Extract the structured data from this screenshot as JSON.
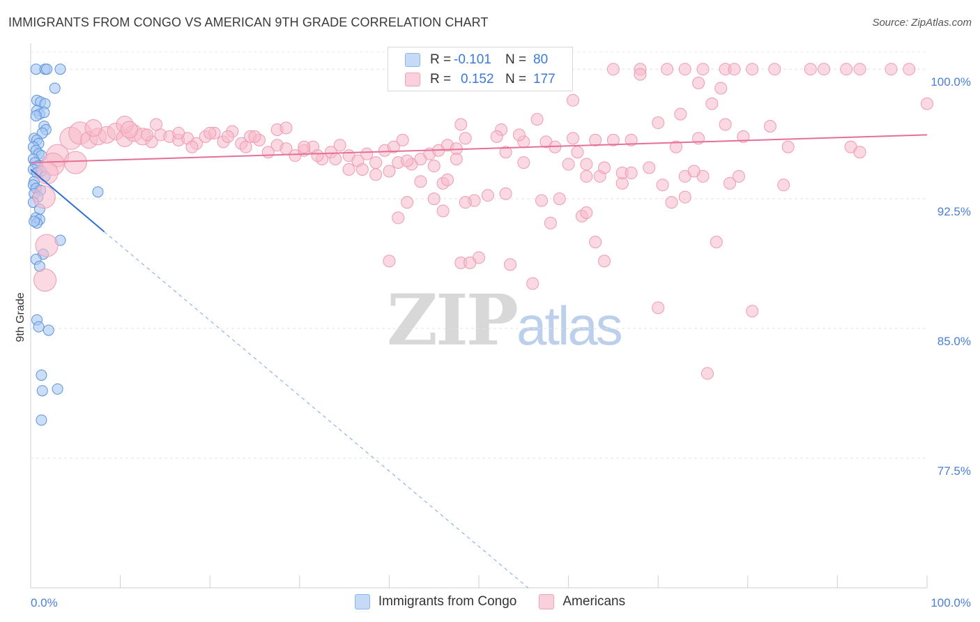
{
  "title": "IMMIGRANTS FROM CONGO VS AMERICAN 9TH GRADE CORRELATION CHART",
  "source": "Source: ZipAtlas.com",
  "watermark": {
    "zip": "ZIP",
    "atlas": "atlas"
  },
  "legend_box": {
    "rows": [
      {
        "r_label": "R =",
        "r_value": "-0.101",
        "n_label": "N =",
        "n_value": "80",
        "color": "#a9c8f3"
      },
      {
        "r_label": "R =",
        "r_value": "0.152",
        "n_label": "N =",
        "n_value": "177",
        "color": "#f7b9cb"
      }
    ]
  },
  "bottom_legend": [
    {
      "label": "Immigrants from Congo",
      "color": "#a9c8f3"
    },
    {
      "label": "Americans",
      "color": "#f7b9cb"
    }
  ],
  "chart_data": {
    "type": "scatter",
    "title": "IMMIGRANTS FROM CONGO VS AMERICAN 9TH GRADE CORRELATION CHART",
    "xlabel": "",
    "ylabel": "9th Grade",
    "xlim": [
      0,
      100
    ],
    "ylim": [
      70,
      101.5
    ],
    "x_tick_labels": [
      "0.0%",
      "100.0%"
    ],
    "y_ticks": [
      77.5,
      85.0,
      92.5,
      100.0
    ],
    "y_tick_labels": [
      "77.5%",
      "85.0%",
      "92.5%",
      "100.0%"
    ],
    "grid": true,
    "series": [
      {
        "name": "Immigrants from Congo",
        "color": "#4a86d8",
        "fill": "#a9c8f3",
        "trend": {
          "x0": 0,
          "y0": 94.2,
          "x1": 8.2,
          "y1": 90.6,
          "dashed_to_x": 55.5,
          "dashed_to_y": 70
        },
        "points": [
          [
            0.6,
            100
          ],
          [
            1.6,
            100
          ],
          [
            1.8,
            100
          ],
          [
            3.3,
            100
          ],
          [
            2.7,
            98.9
          ],
          [
            0.7,
            98.2
          ],
          [
            1.1,
            98.1
          ],
          [
            1.6,
            98.0
          ],
          [
            0.7,
            97.6
          ],
          [
            1.0,
            97.4
          ],
          [
            1.5,
            97.5
          ],
          [
            0.6,
            97.3
          ],
          [
            1.5,
            96.7
          ],
          [
            1.7,
            96.5
          ],
          [
            1.3,
            96.3
          ],
          [
            0.4,
            96.0
          ],
          [
            0.7,
            95.9
          ],
          [
            0.9,
            95.7
          ],
          [
            0.3,
            95.5
          ],
          [
            0.6,
            95.3
          ],
          [
            0.9,
            95.1
          ],
          [
            1.2,
            95.0
          ],
          [
            0.3,
            94.8
          ],
          [
            0.5,
            94.6
          ],
          [
            0.8,
            94.4
          ],
          [
            0.3,
            94.2
          ],
          [
            0.7,
            94.0
          ],
          [
            1.2,
            94.1
          ],
          [
            1.6,
            93.8
          ],
          [
            0.4,
            93.5
          ],
          [
            0.3,
            93.3
          ],
          [
            0.6,
            93.1
          ],
          [
            1.1,
            93.0
          ],
          [
            0.4,
            92.8
          ],
          [
            0.8,
            92.6
          ],
          [
            0.3,
            92.3
          ],
          [
            1.0,
            91.9
          ],
          [
            0.6,
            91.4
          ],
          [
            1.0,
            91.3
          ],
          [
            0.7,
            91.1
          ],
          [
            0.4,
            91.2
          ],
          [
            3.3,
            90.1
          ],
          [
            1.4,
            89.3
          ],
          [
            0.6,
            89.0
          ],
          [
            1.0,
            88.6
          ],
          [
            0.7,
            85.5
          ],
          [
            0.9,
            85.1
          ],
          [
            2.0,
            84.9
          ],
          [
            1.2,
            82.3
          ],
          [
            1.3,
            81.4
          ],
          [
            3.0,
            81.5
          ],
          [
            1.2,
            79.7
          ],
          [
            7.5,
            92.9
          ]
        ]
      },
      {
        "name": "Americans",
        "color": "#e06a94",
        "fill": "#f7b9cb",
        "trend": {
          "x0": 0,
          "y0": 94.6,
          "x1": 100,
          "y1": 96.2
        },
        "points": [
          [
            59.5,
            100
          ],
          [
            65,
            100
          ],
          [
            68,
            100
          ],
          [
            71,
            100
          ],
          [
            73,
            100
          ],
          [
            75,
            100
          ],
          [
            77.5,
            100
          ],
          [
            78.5,
            100
          ],
          [
            80.5,
            100
          ],
          [
            83,
            100
          ],
          [
            87,
            100
          ],
          [
            88.5,
            100
          ],
          [
            91,
            100
          ],
          [
            92.5,
            100
          ],
          [
            96,
            100
          ],
          [
            98,
            100
          ],
          [
            68,
            99.7
          ],
          [
            74.5,
            99.2
          ],
          [
            77,
            98.9
          ],
          [
            60.5,
            98.2
          ],
          [
            76,
            98
          ],
          [
            100,
            98
          ],
          [
            72.5,
            97.4
          ],
          [
            56.5,
            97.1
          ],
          [
            70,
            96.9
          ],
          [
            77.5,
            96.8
          ],
          [
            82.5,
            96.7
          ],
          [
            48,
            96.8
          ],
          [
            52.5,
            96.5
          ],
          [
            55,
            95.8
          ],
          [
            63,
            95.9
          ],
          [
            67,
            95.9
          ],
          [
            74.5,
            96.0
          ],
          [
            84.5,
            95.5
          ],
          [
            91.5,
            95.5
          ],
          [
            92.5,
            95.2
          ],
          [
            72,
            95.5
          ],
          [
            61,
            95.2
          ],
          [
            63.5,
            93.8
          ],
          [
            66,
            93.4
          ],
          [
            75,
            93.8
          ],
          [
            78,
            93.4
          ],
          [
            79,
            93.8
          ],
          [
            84,
            93.3
          ],
          [
            49.5,
            92.4
          ],
          [
            53,
            92.8
          ],
          [
            57,
            92.4
          ],
          [
            59,
            92.5
          ],
          [
            61.5,
            91.5
          ],
          [
            51,
            92.7
          ],
          [
            48.5,
            92.3
          ],
          [
            62,
            91.7
          ],
          [
            58,
            91.1
          ],
          [
            50,
            89.1
          ],
          [
            48,
            88.8
          ],
          [
            49,
            88.8
          ],
          [
            64,
            88.9
          ],
          [
            56,
            87.6
          ],
          [
            70,
            86.2
          ],
          [
            80.5,
            86.0
          ],
          [
            76.5,
            90.0
          ],
          [
            63,
            90.0
          ],
          [
            45,
            92.5
          ],
          [
            42,
            92.3
          ],
          [
            41,
            91.4
          ],
          [
            46,
            91.8
          ],
          [
            40,
            88.9
          ],
          [
            53.5,
            88.7
          ],
          [
            62,
            93.8
          ],
          [
            66,
            94.0
          ],
          [
            60,
            94.5
          ],
          [
            75.5,
            82.4
          ],
          [
            79.5,
            96.1
          ],
          [
            73,
            93.8
          ],
          [
            1.8,
            89.8
          ],
          [
            1.6,
            87.8
          ],
          [
            1.5,
            92.6
          ],
          [
            3.0,
            95.0
          ],
          [
            2.5,
            94.5
          ],
          [
            1.8,
            94.0
          ],
          [
            4.5,
            96.0
          ],
          [
            5.5,
            96.3
          ],
          [
            6.5,
            95.9
          ],
          [
            7.5,
            96.1
          ],
          [
            8.5,
            96.2
          ],
          [
            9.5,
            96.4
          ],
          [
            10.5,
            96.0
          ],
          [
            11.5,
            96.3
          ],
          [
            12.5,
            96.1
          ],
          [
            13.5,
            95.8
          ],
          [
            14.5,
            96.2
          ],
          [
            15.5,
            96.1
          ],
          [
            16.5,
            95.9
          ],
          [
            17.5,
            96.0
          ],
          [
            18.5,
            95.7
          ],
          [
            19.5,
            96.1
          ],
          [
            20.5,
            96.3
          ],
          [
            21.5,
            95.8
          ],
          [
            22.5,
            96.4
          ],
          [
            23.5,
            95.7
          ],
          [
            24.5,
            96.1
          ],
          [
            25.5,
            95.9
          ],
          [
            26.5,
            95.2
          ],
          [
            27.5,
            95.6
          ],
          [
            28.5,
            95.4
          ],
          [
            29.5,
            95.0
          ],
          [
            30.5,
            95.3
          ],
          [
            31.5,
            95.5
          ],
          [
            32.5,
            94.8
          ],
          [
            33.5,
            95.2
          ],
          [
            34.5,
            95.6
          ],
          [
            35.5,
            95.0
          ],
          [
            36.5,
            94.7
          ],
          [
            37.5,
            95.1
          ],
          [
            38.5,
            94.6
          ],
          [
            39.5,
            95.3
          ],
          [
            40.5,
            95.5
          ],
          [
            41.5,
            95.9
          ],
          [
            42.5,
            94.5
          ],
          [
            43.5,
            94.8
          ],
          [
            44.5,
            95.1
          ],
          [
            45.5,
            95.3
          ],
          [
            46.5,
            95.6
          ],
          [
            47.5,
            95.4
          ],
          [
            48.5,
            96.0
          ],
          [
            5.0,
            94.6
          ],
          [
            7.0,
            96.6
          ],
          [
            10.5,
            96.8
          ],
          [
            11.0,
            96.5
          ],
          [
            13.0,
            96.2
          ],
          [
            14.0,
            96.8
          ],
          [
            16.5,
            96.3
          ],
          [
            18.0,
            95.5
          ],
          [
            20.0,
            96.3
          ],
          [
            22.0,
            96.1
          ],
          [
            24.0,
            95.5
          ],
          [
            25.0,
            96.1
          ],
          [
            27.5,
            96.5
          ],
          [
            28.5,
            96.6
          ],
          [
            30.5,
            95.5
          ],
          [
            32.0,
            95.0
          ],
          [
            34.0,
            94.8
          ],
          [
            35.5,
            94.2
          ],
          [
            37.0,
            94.2
          ],
          [
            38.5,
            93.9
          ],
          [
            40.0,
            94.1
          ],
          [
            41.0,
            94.6
          ],
          [
            42.0,
            94.7
          ],
          [
            43.5,
            93.5
          ],
          [
            45.0,
            94.4
          ],
          [
            46.0,
            93.4
          ],
          [
            46.5,
            93.6
          ],
          [
            47.5,
            94.8
          ],
          [
            52.0,
            96.1
          ],
          [
            53.0,
            95.2
          ],
          [
            54.5,
            96.2
          ],
          [
            55.0,
            94.6
          ],
          [
            57.5,
            95.8
          ],
          [
            58.5,
            95.5
          ],
          [
            60.5,
            96.0
          ],
          [
            62.0,
            94.5
          ],
          [
            64.0,
            94.3
          ],
          [
            65.0,
            95.9
          ],
          [
            67.0,
            94.0
          ],
          [
            69.0,
            94.3
          ],
          [
            70.5,
            93.3
          ],
          [
            71.5,
            92.3
          ],
          [
            73.0,
            92.6
          ],
          [
            74.0,
            94.1
          ]
        ]
      }
    ]
  }
}
